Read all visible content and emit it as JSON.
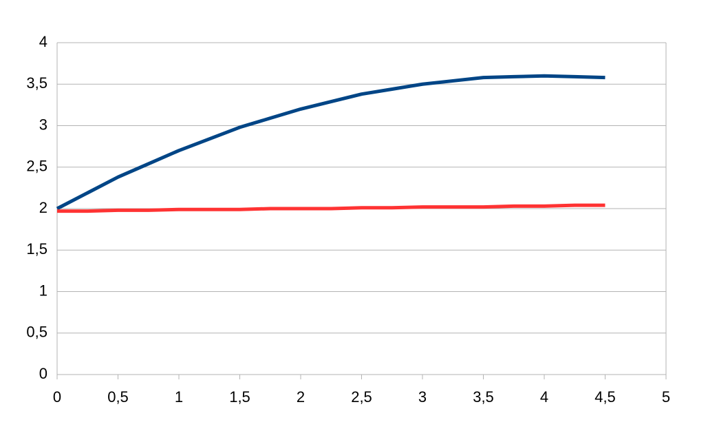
{
  "chart_data": {
    "type": "line",
    "x": [
      0,
      0.25,
      0.5,
      0.75,
      1,
      1.25,
      1.5,
      1.75,
      2,
      2.25,
      2.5,
      2.75,
      3,
      3.25,
      3.5,
      3.75,
      4,
      4.25,
      4.5
    ],
    "series": [
      {
        "color": "#004586",
        "values": [
          2.0,
          2.19,
          2.38,
          2.54,
          2.7,
          2.84,
          2.98,
          3.09,
          3.2,
          3.29,
          3.38,
          3.44,
          3.5,
          3.54,
          3.58,
          3.59,
          3.6,
          3.59,
          3.58
        ]
      },
      {
        "color": "#ff3333",
        "values": [
          1.97,
          1.97,
          1.98,
          1.98,
          1.99,
          1.99,
          1.99,
          2.0,
          2.0,
          2.0,
          2.01,
          2.01,
          2.02,
          2.02,
          2.02,
          2.03,
          2.03,
          2.04,
          2.04
        ]
      }
    ],
    "xlim": [
      0,
      5
    ],
    "xticks": [
      0,
      {
        "value": 0.5,
        "label": "0,5"
      },
      1,
      {
        "value": 1.5,
        "label": "1,5"
      },
      2,
      {
        "value": 2.5,
        "label": "2,5"
      },
      3,
      {
        "value": 3.5,
        "label": "3,5"
      },
      4,
      {
        "value": 4.5,
        "label": "4,5"
      },
      5
    ],
    "ylim": [
      0,
      4
    ],
    "yticks": [
      0,
      {
        "value": 0.5,
        "label": "0,5"
      },
      1,
      {
        "value": 1.5,
        "label": "1,5"
      },
      2,
      {
        "value": 2.5,
        "label": "2,5"
      },
      3,
      {
        "value": 3.5,
        "label": "3,5"
      },
      4
    ],
    "grid": true
  }
}
